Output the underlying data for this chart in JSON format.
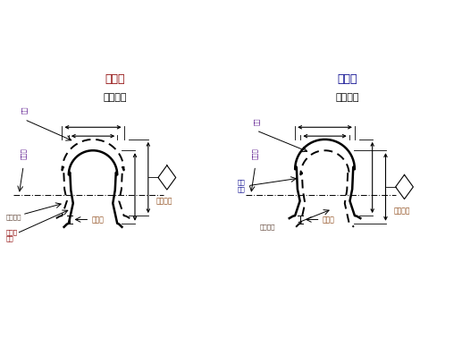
{
  "title_left": "负变位",
  "subtitle_left": "齿厚变薄",
  "title_right": "正变位",
  "subtitle_right": "齿厚变厚",
  "title_color_left": "#8B0000",
  "title_color_right": "#00008B",
  "bg_color": "#ffffff",
  "label_std": "标准齿轮",
  "label_shifted_left": "负变位\n齿轮",
  "label_shifted_right": "变位\n齿轮",
  "label_center_dist": "安位量",
  "label_tooth_same": "齿高相同",
  "label_pitch": "分度圆",
  "label_top_left": "顶圆",
  "label_top_right": "顶圆",
  "figsize": [
    5.17,
    3.88
  ],
  "dpi": 100
}
